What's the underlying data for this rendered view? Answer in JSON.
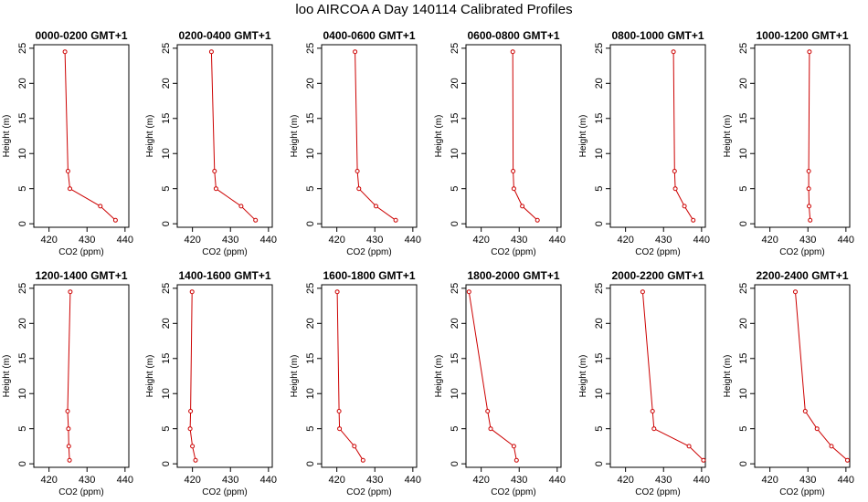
{
  "title": "loo AIRCOA A  Day 140114  Calibrated Profiles",
  "chart_data": {
    "type": "line",
    "xlabel": "CO2 (ppm)",
    "ylabel": "Height (m)",
    "xlim": [
      416,
      441
    ],
    "ylim": [
      -0.5,
      25.5
    ],
    "xticks": [
      420,
      430,
      440
    ],
    "yticks": [
      0,
      5,
      10,
      15,
      20,
      25
    ],
    "heights": [
      0.5,
      2.5,
      5,
      7.5,
      24.5
    ],
    "line_color": "#cc0000",
    "panels": [
      {
        "title": "0000-0200 GMT+1",
        "x": [
          437.5,
          433.5,
          425.5,
          425.0,
          424.2
        ]
      },
      {
        "title": "0200-0400 GMT+1",
        "x": [
          436.6,
          432.8,
          426.2,
          425.8,
          425.0
        ]
      },
      {
        "title": "0400-0600 GMT+1",
        "x": [
          435.5,
          430.3,
          425.8,
          425.4,
          424.8
        ]
      },
      {
        "title": "0600-0800 GMT+1",
        "x": [
          434.8,
          430.8,
          428.6,
          428.4,
          428.3
        ]
      },
      {
        "title": "0800-1000 GMT+1",
        "x": [
          437.8,
          435.5,
          433.1,
          432.9,
          432.6
        ]
      },
      {
        "title": "1000-1200 GMT+1",
        "x": [
          430.6,
          430.3,
          430.2,
          430.2,
          430.4
        ]
      },
      {
        "title": "1200-1400 GMT+1",
        "x": [
          425.4,
          425.2,
          425.1,
          424.9,
          425.6
        ]
      },
      {
        "title": "1400-1600 GMT+1",
        "x": [
          420.8,
          420.0,
          419.4,
          419.5,
          419.9
        ]
      },
      {
        "title": "1600-1800 GMT+1",
        "x": [
          426.9,
          424.6,
          420.7,
          420.6,
          420.1
        ]
      },
      {
        "title": "1800-2000 GMT+1",
        "x": [
          429.3,
          428.6,
          422.5,
          421.7,
          416.8
        ]
      },
      {
        "title": "2000-2200 GMT+1",
        "x": [
          440.5,
          436.7,
          427.5,
          427.1,
          424.5
        ]
      },
      {
        "title": "2200-2400 GMT+1",
        "x": [
          440.4,
          436.2,
          432.4,
          429.3,
          426.7
        ]
      }
    ]
  }
}
